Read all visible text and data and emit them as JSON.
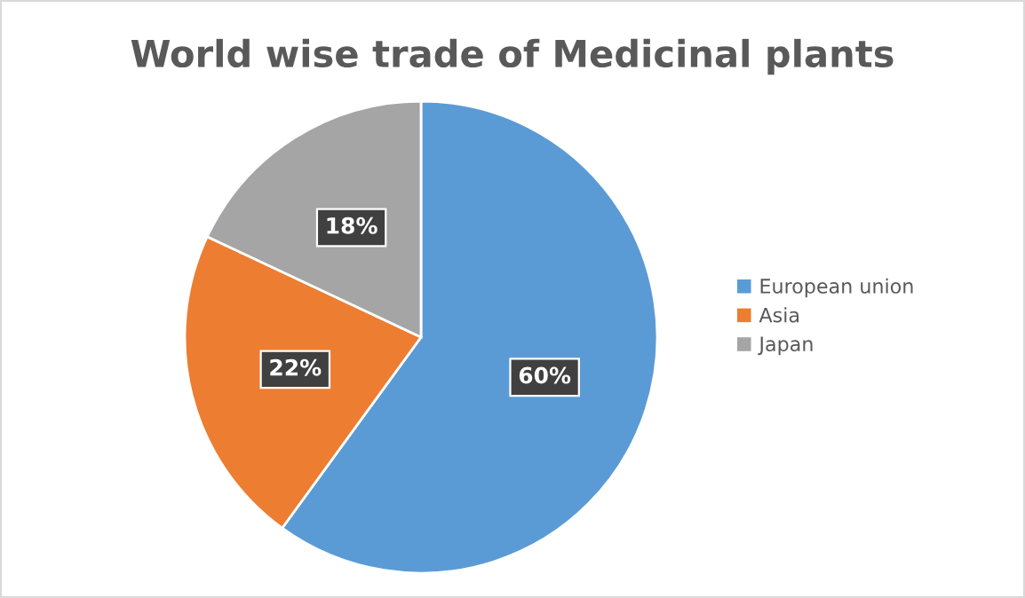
{
  "chart_data": {
    "type": "pie",
    "title": "World wise trade of Medicinal plants",
    "categories": [
      "European union",
      "Asia",
      "Japan"
    ],
    "values": [
      60,
      22,
      18
    ],
    "colors": [
      "#5b9bd5",
      "#ed7d31",
      "#a5a5a5"
    ],
    "value_labels": [
      "60%",
      "22%",
      "18%"
    ],
    "legend": "right"
  }
}
